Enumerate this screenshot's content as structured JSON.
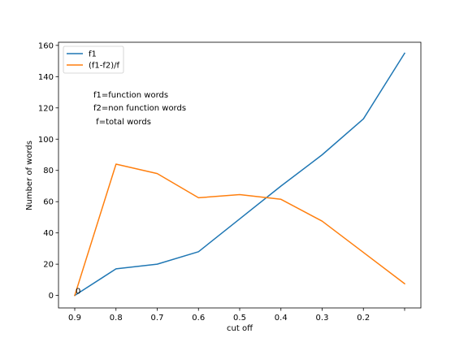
{
  "chart_data": {
    "type": "line",
    "title": "",
    "xlabel": "cut off",
    "ylabel": "Number of words",
    "x_tick_labels": [
      "0.9",
      "0.8",
      "0.7",
      "0.6",
      "0.5",
      "0.4",
      "0.3",
      "0.2",
      ""
    ],
    "ylim": [
      -8,
      162
    ],
    "y_ticks": [
      0,
      20,
      40,
      60,
      80,
      100,
      120,
      140,
      160
    ],
    "grid": false,
    "legend_position": "top-left",
    "series": [
      {
        "name": "f1",
        "color": "#1f77b4",
        "values": [
          0,
          17,
          20,
          28,
          49,
          70,
          90,
          113,
          155
        ]
      },
      {
        "name": "(f1-f2)/f",
        "color": "#ff7f0e",
        "values": [
          0,
          84,
          78,
          62.5,
          64.5,
          61.5,
          47.5,
          27.5,
          7.5
        ]
      }
    ],
    "annotations": [
      {
        "text": "0",
        "x_index": 0,
        "y": 0
      },
      {
        "text": "f1=function words"
      },
      {
        "text": "f2=non function words"
      },
      {
        "text": " f=total words"
      }
    ]
  }
}
